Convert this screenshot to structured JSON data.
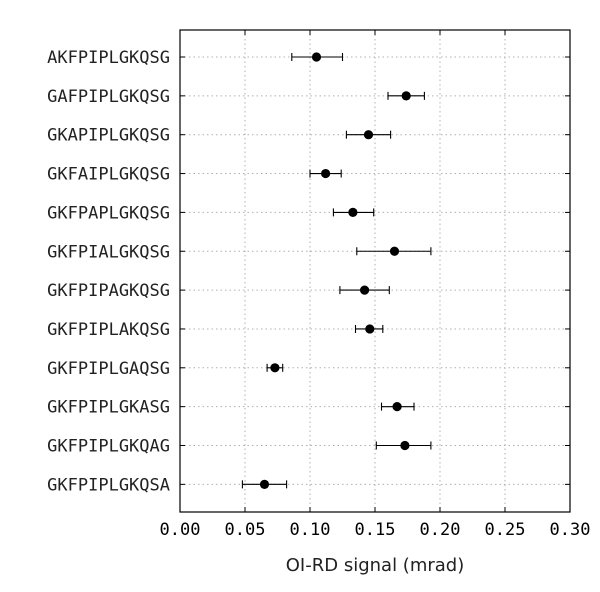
{
  "chart_data": {
    "type": "scatter",
    "orientation": "horizontal",
    "title": "",
    "xlabel": "OI-RD signal (mrad)",
    "ylabel": "",
    "xlim": [
      0.0,
      0.3
    ],
    "xticks": [
      0.0,
      0.05,
      0.1,
      0.15,
      0.2,
      0.25,
      0.3
    ],
    "xtick_labels": [
      "0.00",
      "0.05",
      "0.10",
      "0.15",
      "0.20",
      "0.25",
      "0.30"
    ],
    "grid": true,
    "legend": "none",
    "colors": {
      "marker": "#000000",
      "grid": "#b0b0b0",
      "frame": "#000000"
    },
    "categories": [
      "AKFPIPLGKQSG",
      "GAFPIPLGKQSG",
      "GKAPIPLGKQSG",
      "GKFAIPLGKQSG",
      "GKFPAPLGKQSG",
      "GKFPIALGKQSG",
      "GKFPIPAGKQSG",
      "GKFPIPLAKQSG",
      "GKFPIPLGAQSG",
      "GKFPIPLGKASG",
      "GKFPIPLGKQAG",
      "GKFPIPLGKQSA"
    ],
    "values": [
      0.105,
      0.174,
      0.145,
      0.112,
      0.133,
      0.165,
      0.142,
      0.146,
      0.073,
      0.167,
      0.173,
      0.065
    ],
    "error_low": [
      0.086,
      0.16,
      0.128,
      0.1,
      0.118,
      0.136,
      0.123,
      0.135,
      0.067,
      0.155,
      0.151,
      0.048
    ],
    "error_high": [
      0.125,
      0.188,
      0.162,
      0.124,
      0.149,
      0.193,
      0.161,
      0.156,
      0.079,
      0.18,
      0.193,
      0.082
    ]
  }
}
